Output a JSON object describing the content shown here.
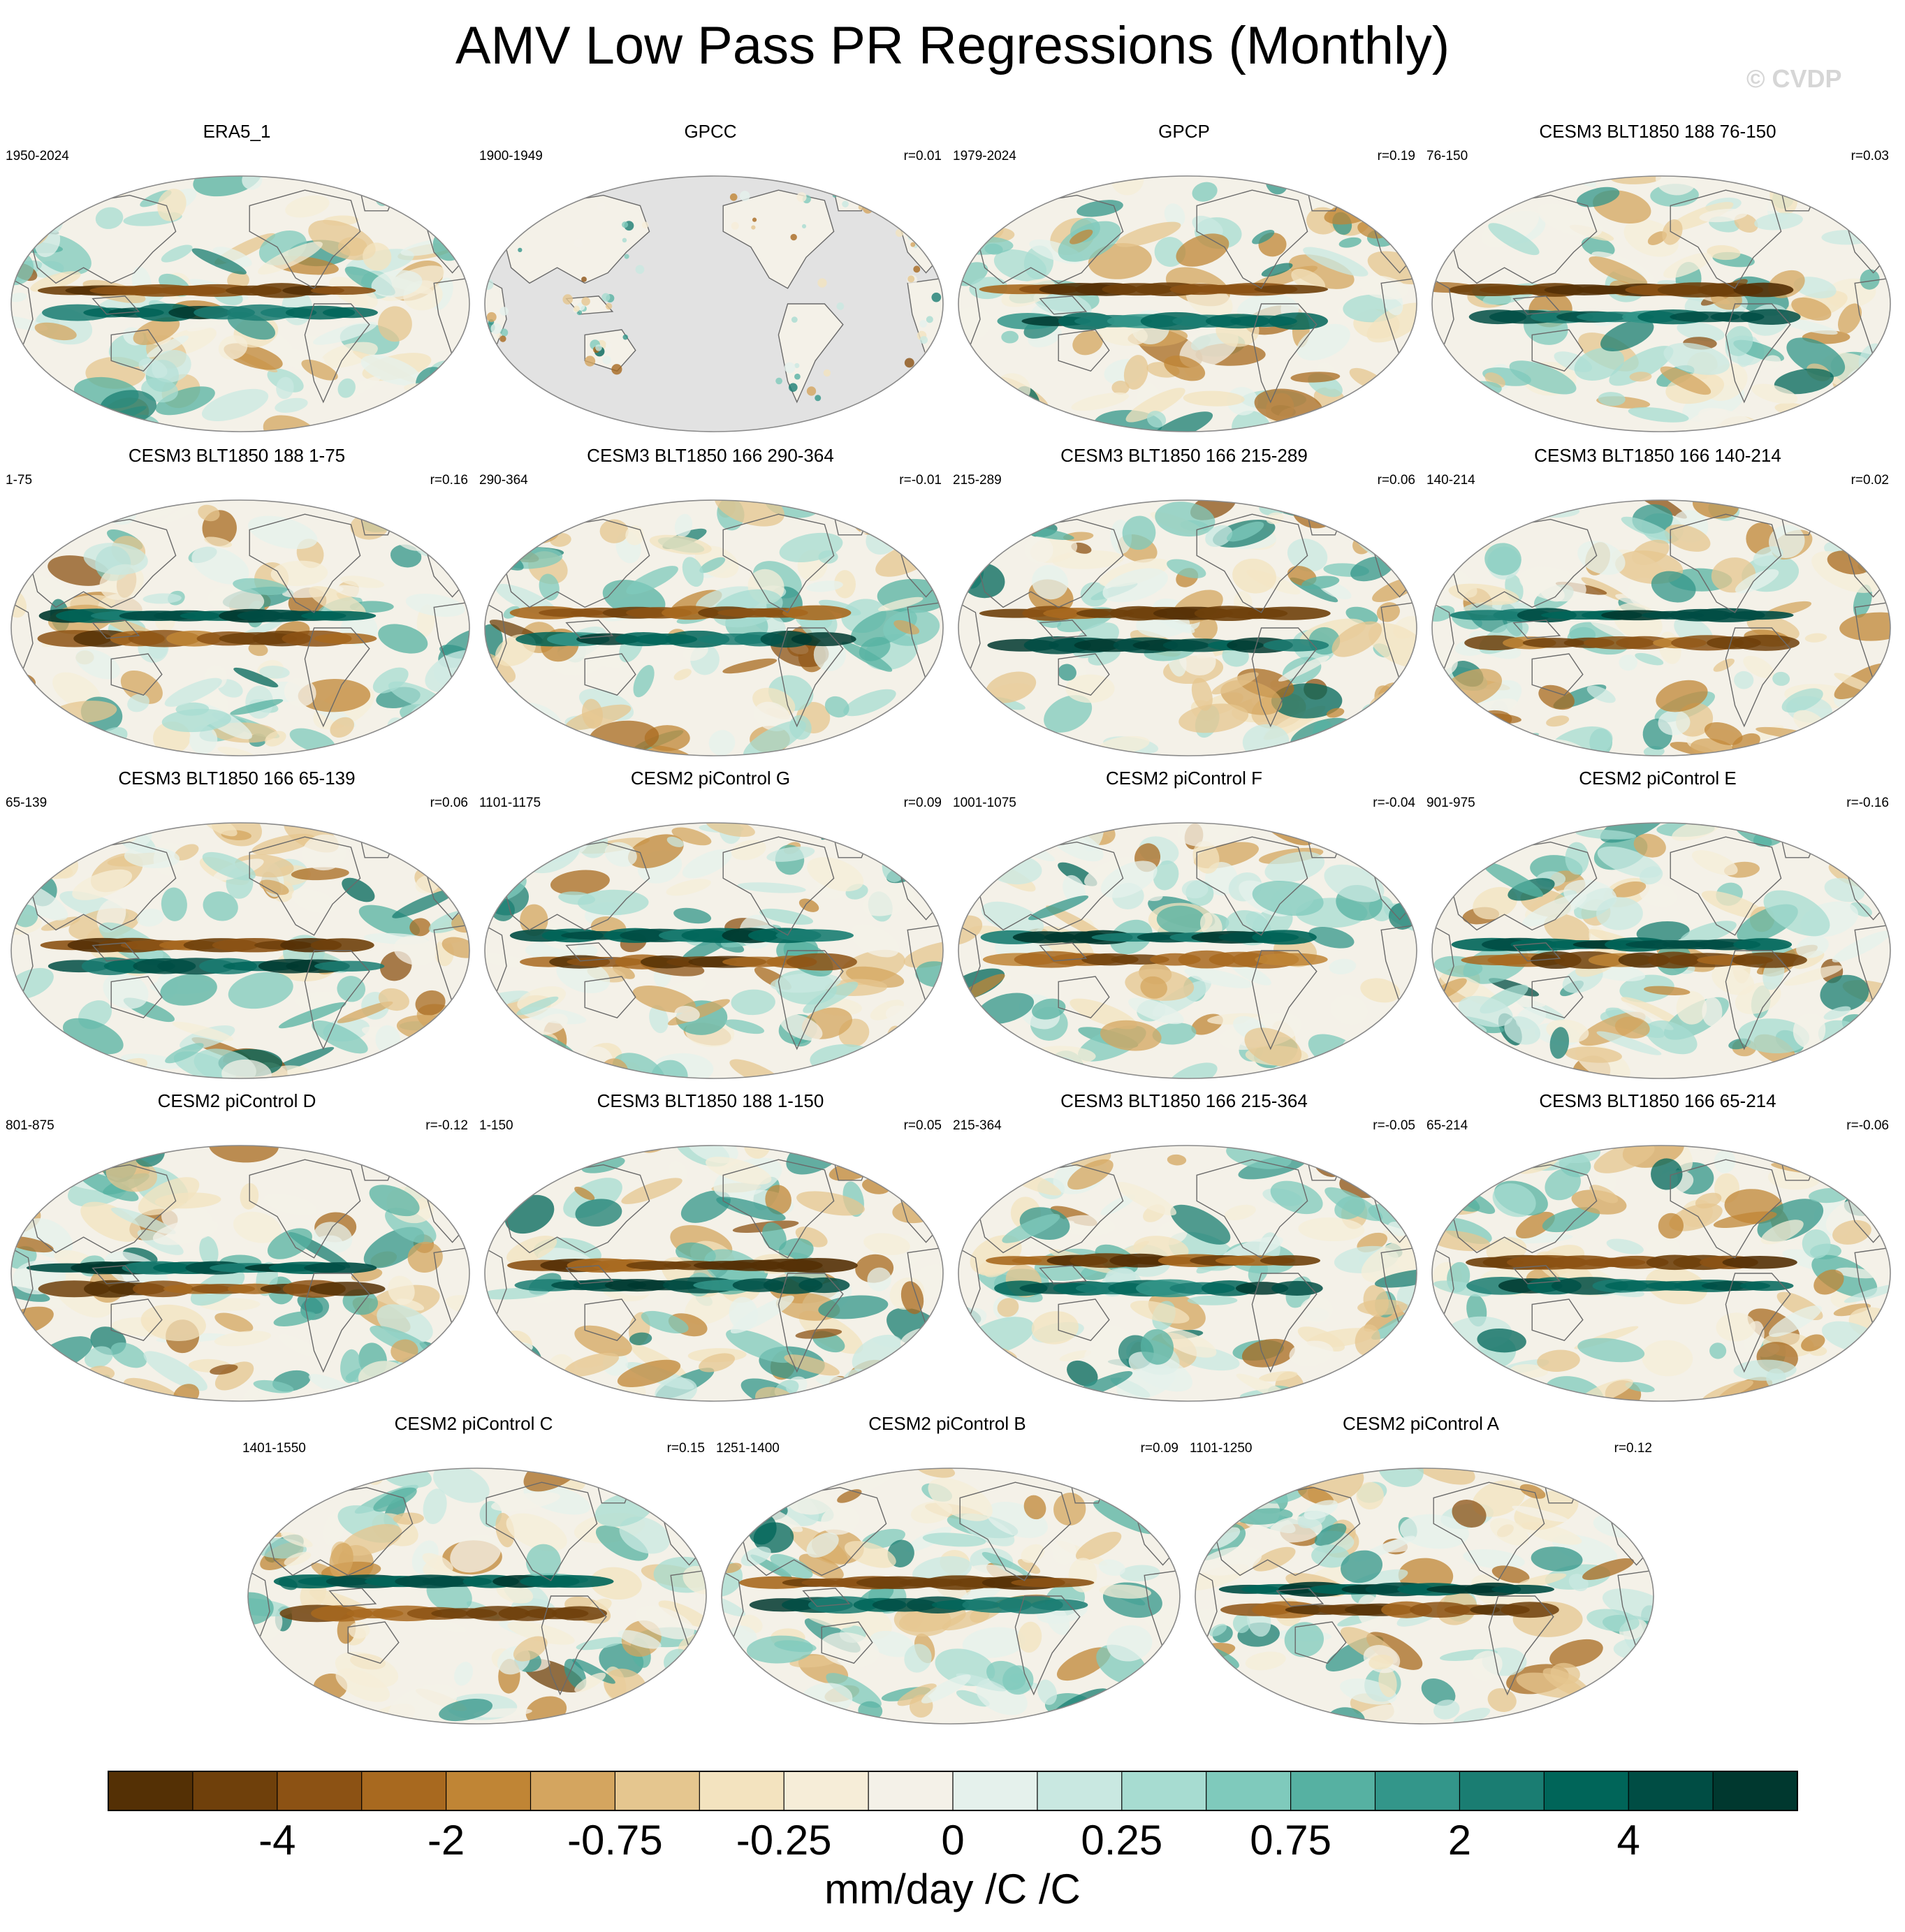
{
  "title": "AMV Low Pass PR Regressions (Monthly)",
  "watermark": "© CVDP",
  "colors": {
    "negative": "#8f5a1b",
    "positive": "#00665e",
    "neutral": "#f4f1e8",
    "missing": "#e2e2e2",
    "coast": "#6a6a6a"
  },
  "chart_data": {
    "type": "heatmap",
    "description_units": "mm/day /C /C",
    "panels": [
      {
        "title": "ERA5_1",
        "period": "1950-2024",
        "r": "",
        "seed": 11,
        "missing_ocean": false
      },
      {
        "title": "GPCC",
        "period": "1900-1949",
        "r": "r=0.01",
        "seed": 23,
        "missing_ocean": true
      },
      {
        "title": "GPCP",
        "period": "1979-2024",
        "r": "r=0.19",
        "seed": 37,
        "missing_ocean": false
      },
      {
        "title": "CESM3 BLT1850 188 76-150",
        "period": "76-150",
        "r": "r=0.03",
        "seed": 41,
        "missing_ocean": false
      },
      {
        "title": "CESM3 BLT1850 188 1-75",
        "period": "1-75",
        "r": "r=0.16",
        "seed": 53,
        "missing_ocean": false
      },
      {
        "title": "CESM3 BLT1850 166 290-364",
        "period": "290-364",
        "r": "r=-0.01",
        "seed": 67,
        "missing_ocean": false
      },
      {
        "title": "CESM3 BLT1850 166 215-289",
        "period": "215-289",
        "r": "r=0.06",
        "seed": 71,
        "missing_ocean": false
      },
      {
        "title": "CESM3 BLT1850 166 140-214",
        "period": "140-214",
        "r": "r=0.02",
        "seed": 83,
        "missing_ocean": false
      },
      {
        "title": "CESM3 BLT1850 166 65-139",
        "period": "65-139",
        "r": "r=0.06",
        "seed": 97,
        "missing_ocean": false
      },
      {
        "title": "CESM2 piControl G",
        "period": "1101-1175",
        "r": "r=0.09",
        "seed": 101,
        "missing_ocean": false
      },
      {
        "title": "CESM2 piControl F",
        "period": "1001-1075",
        "r": "r=-0.04",
        "seed": 113,
        "missing_ocean": false
      },
      {
        "title": "CESM2 piControl E",
        "period": "901-975",
        "r": "r=-0.16",
        "seed": 127,
        "missing_ocean": false
      },
      {
        "title": "CESM2 piControl D",
        "period": "801-875",
        "r": "r=-0.12",
        "seed": 131,
        "missing_ocean": false
      },
      {
        "title": "CESM3 BLT1850 188 1-150",
        "period": "1-150",
        "r": "r=0.05",
        "seed": 149,
        "missing_ocean": false
      },
      {
        "title": "CESM3 BLT1850 166 215-364",
        "period": "215-364",
        "r": "r=-0.05",
        "seed": 151,
        "missing_ocean": false
      },
      {
        "title": "CESM3 BLT1850 166 65-214",
        "period": "65-214",
        "r": "r=-0.06",
        "seed": 163,
        "missing_ocean": false
      },
      {
        "title": "CESM2 piControl C",
        "period": "1401-1550",
        "r": "r=0.15",
        "seed": 173,
        "missing_ocean": false
      },
      {
        "title": "CESM2 piControl B",
        "period": "1251-1400",
        "r": "r=0.09",
        "seed": 181,
        "missing_ocean": false
      },
      {
        "title": "CESM2 piControl A",
        "period": "1101-1250",
        "r": "r=0.12",
        "seed": 191,
        "missing_ocean": false
      }
    ],
    "colorbar": {
      "colors": [
        "#543005",
        "#6f400b",
        "#8c5214",
        "#a8691f",
        "#c08535",
        "#d4a55f",
        "#e5c68f",
        "#f3e3bf",
        "#f6edd8",
        "#f4f1e8",
        "#e5f1ec",
        "#c9e8e1",
        "#a7dcd1",
        "#7fcabc",
        "#56b1a2",
        "#33968a",
        "#1a7d72",
        "#006559",
        "#004d44",
        "#00382f"
      ],
      "tick_labels": [
        "-4",
        "-2",
        "-0.75",
        "-0.25",
        "0",
        "0.25",
        "0.75",
        "2",
        "4"
      ],
      "label": "mm/day /C /C"
    }
  }
}
